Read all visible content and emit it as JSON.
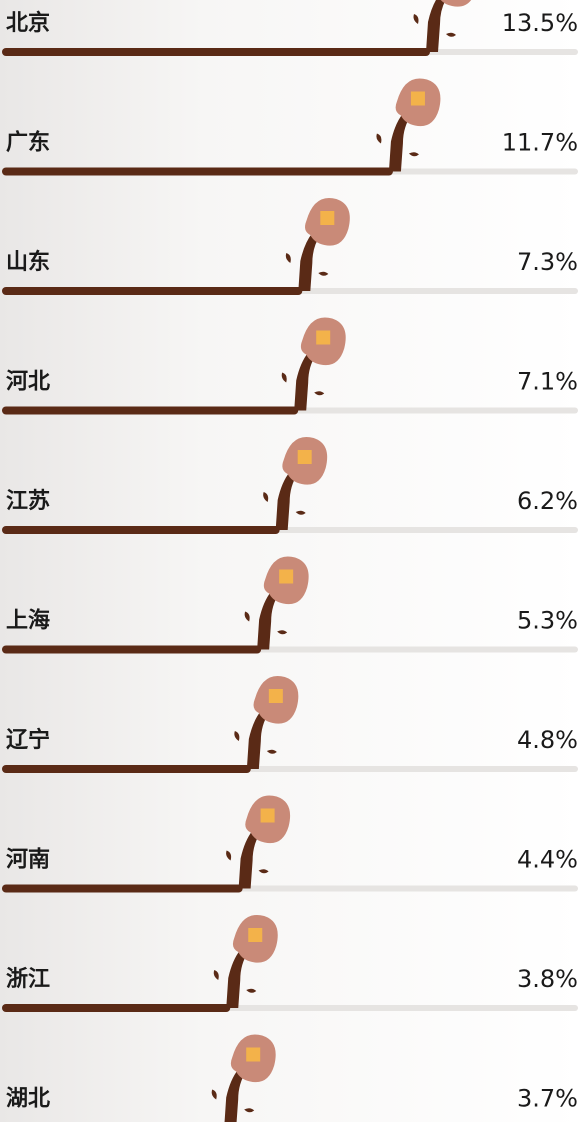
{
  "chart_data": {
    "type": "bar",
    "categories": [
      "北京",
      "广东",
      "山东",
      "河北",
      "江苏",
      "上海",
      "辽宁",
      "河南",
      "浙江",
      "湖北"
    ],
    "values": [
      13.5,
      11.7,
      7.3,
      7.1,
      6.2,
      5.3,
      4.8,
      4.4,
      3.8,
      3.7
    ],
    "value_labels": [
      "13.5%",
      "11.7%",
      "7.3%",
      "7.1%",
      "6.2%",
      "5.3%",
      "4.8%",
      "4.4%",
      "3.8%",
      "3.7%"
    ],
    "color": "#5a2a16"
  }
}
